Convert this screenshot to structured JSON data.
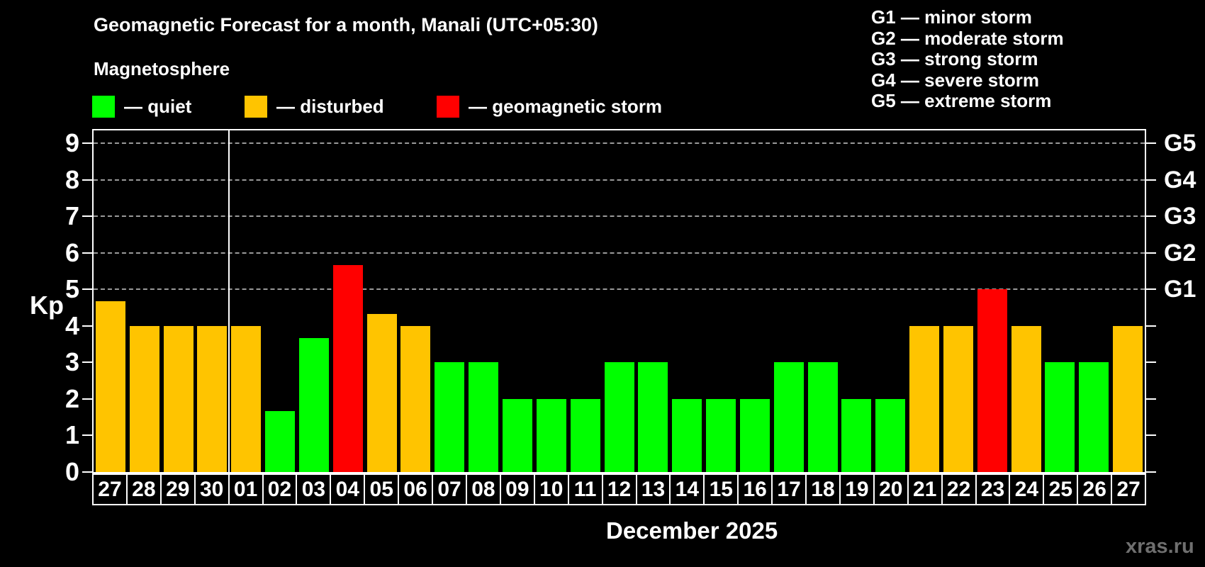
{
  "header": {
    "title": "Geomagnetic Forecast for a month, Manali (UTC+05:30)",
    "subtitle": "Magnetosphere"
  },
  "legend": {
    "items": [
      {
        "state": "quiet",
        "label": "— quiet"
      },
      {
        "state": "disturbed",
        "label": "— disturbed"
      },
      {
        "state": "storm",
        "label": "— geomagnetic storm"
      }
    ]
  },
  "g_legend": {
    "lines": [
      "G1 — minor storm",
      "G2 — moderate storm",
      "G3 — strong storm",
      "G4 — severe storm",
      "G5 — extreme storm"
    ]
  },
  "axis": {
    "kp_label": "Kp",
    "month_label": "December 2025"
  },
  "watermark": "xras.ru",
  "colors": {
    "quiet": "#00ff00",
    "disturbed": "#ffc400",
    "storm": "#ff0000",
    "axis": "#ffffff",
    "gridline": "#9a9a9a",
    "watermark": "#6f6f6f"
  },
  "chart_data": {
    "type": "bar",
    "title": "Geomagnetic Forecast for a month, Manali (UTC+05:30)",
    "xlabel": "December 2025",
    "ylabel": "Kp",
    "ylim": [
      0,
      9
    ],
    "y_ticks": [
      0,
      1,
      2,
      3,
      4,
      5,
      6,
      7,
      8,
      9
    ],
    "gridlines_at": [
      5,
      6,
      7,
      8,
      9
    ],
    "grid_style": "dashed",
    "legend_position": "top",
    "right_axis": {
      "G5": 9,
      "G4": 8,
      "G3": 7,
      "G2": 6,
      "G1": 5
    },
    "categories": [
      "27",
      "28",
      "29",
      "30",
      "01",
      "02",
      "03",
      "04",
      "05",
      "06",
      "07",
      "08",
      "09",
      "10",
      "11",
      "12",
      "13",
      "14",
      "15",
      "16",
      "17",
      "18",
      "19",
      "20",
      "21",
      "22",
      "23",
      "24",
      "25",
      "26",
      "27"
    ],
    "values": [
      4.67,
      4,
      4,
      4,
      4,
      1.67,
      3.67,
      5.67,
      4.33,
      4,
      3,
      3,
      2,
      2,
      2,
      3,
      3,
      2,
      2,
      2,
      3,
      3,
      2,
      2,
      4,
      4,
      5,
      4,
      3,
      3,
      4
    ],
    "states": [
      "disturbed",
      "disturbed",
      "disturbed",
      "disturbed",
      "disturbed",
      "quiet",
      "quiet",
      "storm",
      "disturbed",
      "disturbed",
      "quiet",
      "quiet",
      "quiet",
      "quiet",
      "quiet",
      "quiet",
      "quiet",
      "quiet",
      "quiet",
      "quiet",
      "quiet",
      "quiet",
      "quiet",
      "quiet",
      "disturbed",
      "disturbed",
      "storm",
      "disturbed",
      "quiet",
      "quiet",
      "disturbed"
    ],
    "month_separator_after_index": 3
  }
}
